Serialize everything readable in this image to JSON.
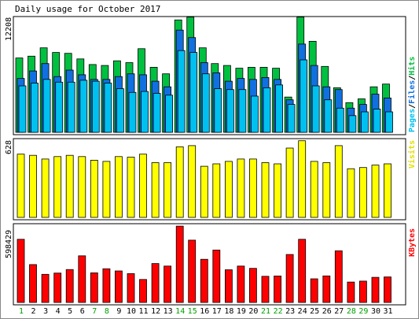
{
  "chart_data": [
    {
      "type": "bar",
      "title": "Daily usage for October 2017",
      "categories": [
        "1",
        "2",
        "3",
        "4",
        "5",
        "6",
        "7",
        "8",
        "9",
        "10",
        "11",
        "12",
        "13",
        "14",
        "15",
        "16",
        "17",
        "18",
        "19",
        "20",
        "21",
        "22",
        "23",
        "24",
        "25",
        "26",
        "27",
        "28",
        "29",
        "30",
        "31"
      ],
      "ylim": [
        0,
        12208
      ],
      "y_max_label": "12208",
      "legend": [
        "Pages",
        "Files",
        "Hits"
      ],
      "series": [
        {
          "name": "Hits",
          "color": "#00c040",
          "values": [
            8000,
            8200,
            9100,
            8600,
            8500,
            7900,
            7300,
            7200,
            7700,
            7500,
            9000,
            7000,
            6300,
            12100,
            12400,
            9100,
            7400,
            7200,
            6900,
            7000,
            7000,
            6900,
            3800,
            12400,
            9800,
            7100,
            4800,
            3200,
            3600,
            4900,
            5200
          ]
        },
        {
          "name": "Files",
          "color": "#1070e0",
          "values": [
            5800,
            6600,
            7400,
            6000,
            6700,
            6200,
            5700,
            5700,
            6000,
            6300,
            6200,
            5500,
            4900,
            11000,
            10200,
            7500,
            6400,
            5500,
            5800,
            5700,
            5900,
            5700,
            3500,
            9500,
            7200,
            4900,
            4600,
            2600,
            3000,
            4100,
            3700
          ]
        },
        {
          "name": "Pages",
          "color": "#00c0f0",
          "values": [
            5000,
            5300,
            5700,
            5400,
            5400,
            5600,
            5500,
            5300,
            4700,
            4300,
            4400,
            4200,
            4000,
            8800,
            8600,
            6300,
            4700,
            4600,
            4600,
            3900,
            4800,
            5100,
            3000,
            7800,
            5000,
            3500,
            2600,
            1800,
            2200,
            2500,
            2200
          ]
        }
      ]
    },
    {
      "type": "bar",
      "categories": [
        "1",
        "2",
        "3",
        "4",
        "5",
        "6",
        "7",
        "8",
        "9",
        "10",
        "11",
        "12",
        "13",
        "14",
        "15",
        "16",
        "17",
        "18",
        "19",
        "20",
        "21",
        "22",
        "23",
        "24",
        "25",
        "26",
        "27",
        "28",
        "29",
        "30",
        "31"
      ],
      "ylim": [
        0,
        628
      ],
      "y_max_label": "628",
      "legend": [
        "Visits"
      ],
      "series": [
        {
          "name": "Visits",
          "color": "#ffff00",
          "values": [
            520,
            510,
            480,
            500,
            510,
            500,
            470,
            460,
            500,
            495,
            520,
            450,
            450,
            580,
            590,
            420,
            440,
            460,
            480,
            480,
            450,
            440,
            570,
            630,
            460,
            450,
            590,
            400,
            410,
            430,
            440
          ]
        }
      ]
    },
    {
      "type": "bar",
      "categories": [
        "1",
        "2",
        "3",
        "4",
        "5",
        "6",
        "7",
        "8",
        "9",
        "10",
        "11",
        "12",
        "13",
        "14",
        "15",
        "16",
        "17",
        "18",
        "19",
        "20",
        "21",
        "22",
        "23",
        "24",
        "25",
        "26",
        "27",
        "28",
        "29",
        "30",
        "31"
      ],
      "ylim": [
        0,
        598429
      ],
      "y_max_label": "598429",
      "legend": [
        "KBytes"
      ],
      "series": [
        {
          "name": "KBytes",
          "color": "#ff0000",
          "values": [
            495000,
            297000,
            220000,
            230000,
            258000,
            365000,
            232000,
            264000,
            247000,
            226000,
            180000,
            305000,
            285000,
            598000,
            488000,
            338000,
            410000,
            256000,
            285000,
            267000,
            205000,
            207000,
            376000,
            495000,
            185000,
            208000,
            404000,
            160000,
            167000,
            197000,
            200000
          ]
        }
      ]
    }
  ],
  "weekend_days": [
    1,
    7,
    8,
    14,
    15,
    21,
    22,
    28,
    29
  ],
  "colors": {
    "frame": "#000000",
    "outline": "#000000",
    "weekday_label": "#000000",
    "weekend_label": "#00a000",
    "panel_bg": "#ffffff"
  }
}
